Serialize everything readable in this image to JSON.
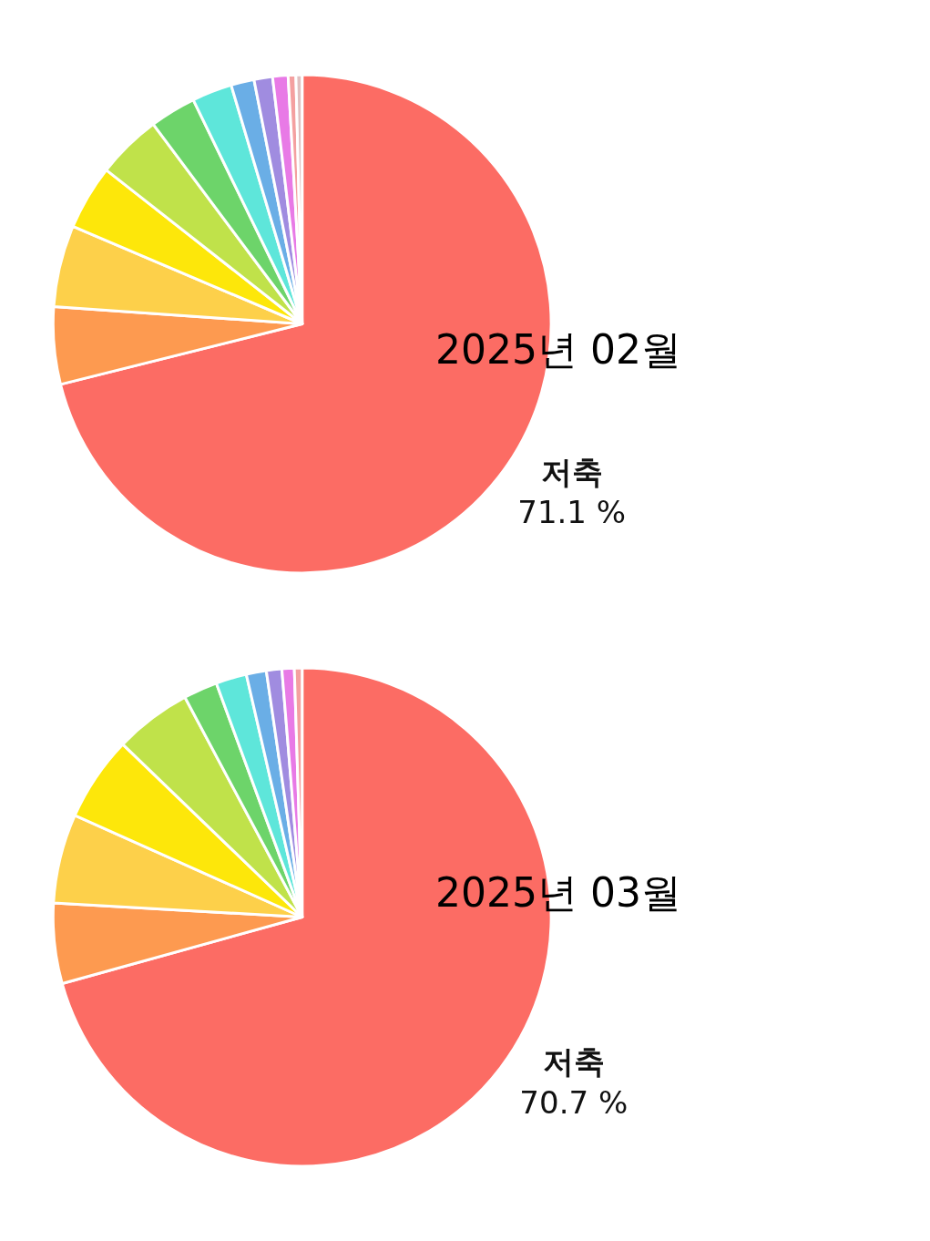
{
  "chart_data": [
    {
      "type": "pie",
      "title": "2025년 02월",
      "categories": [
        "저축",
        null,
        null,
        null,
        null,
        null,
        null,
        null,
        null,
        null,
        null,
        null
      ],
      "values": [
        71.1,
        5.0,
        5.3,
        4.2,
        4.2,
        3.0,
        2.6,
        1.5,
        1.2,
        1.0,
        0.5,
        0.4
      ],
      "colors": [
        "#fc6c64",
        "#fd9a50",
        "#fdd04a",
        "#fde70a",
        "#c0e24a",
        "#6dd46a",
        "#5ee6da",
        "#6aaee6",
        "#a08ce0",
        "#e87ae6",
        "#f4a0a0",
        "#e0c0c0"
      ],
      "value_labels": [
        "71.1 %",
        null,
        null,
        null,
        null,
        null,
        null,
        null,
        null,
        null,
        null,
        null
      ],
      "legend": false
    },
    {
      "type": "pie",
      "title": "2025년 03월",
      "categories": [
        "저축",
        null,
        null,
        null,
        null,
        null,
        null,
        null,
        null,
        null,
        null
      ],
      "values": [
        70.7,
        5.2,
        5.8,
        5.5,
        5.0,
        2.2,
        2.0,
        1.3,
        1.0,
        0.8,
        0.5
      ],
      "colors": [
        "#fc6c64",
        "#fd9a50",
        "#fdd04a",
        "#fde70a",
        "#c0e24a",
        "#6dd46a",
        "#5ee6da",
        "#6aaee6",
        "#a08ce0",
        "#e87ae6",
        "#f4a0a0"
      ],
      "value_labels": [
        "70.7 %",
        null,
        null,
        null,
        null,
        null,
        null,
        null,
        null,
        null,
        null
      ],
      "legend": false
    }
  ]
}
